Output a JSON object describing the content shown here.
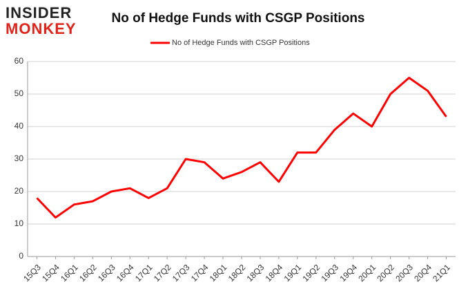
{
  "chart_data": {
    "type": "line",
    "logo": [
      "INSIDER",
      "MONKEY"
    ],
    "title": "No of Hedge Funds with CSGP Positions",
    "categories": [
      "15Q3",
      "15Q4",
      "16Q1",
      "16Q2",
      "16Q3",
      "16Q4",
      "17Q1",
      "17Q2",
      "17Q3",
      "17Q4",
      "18Q1",
      "18Q2",
      "18Q3",
      "18Q4",
      "19Q1",
      "19Q2",
      "19Q3",
      "19Q4",
      "20Q1",
      "20Q2",
      "20Q3",
      "20Q4",
      "21Q1"
    ],
    "series": [
      {
        "name": "No of Hedge Funds with CSGP Positions",
        "color": "#ff0000",
        "values": [
          18,
          12,
          16,
          17,
          20,
          21,
          18,
          21,
          30,
          29,
          24,
          26,
          29,
          23,
          32,
          32,
          39,
          44,
          40,
          50,
          55,
          51,
          43
        ]
      }
    ],
    "ylim": [
      0,
      60
    ],
    "yticks": [
      0,
      10,
      20,
      30,
      40,
      50,
      60
    ],
    "grid": true,
    "legend": "top"
  }
}
